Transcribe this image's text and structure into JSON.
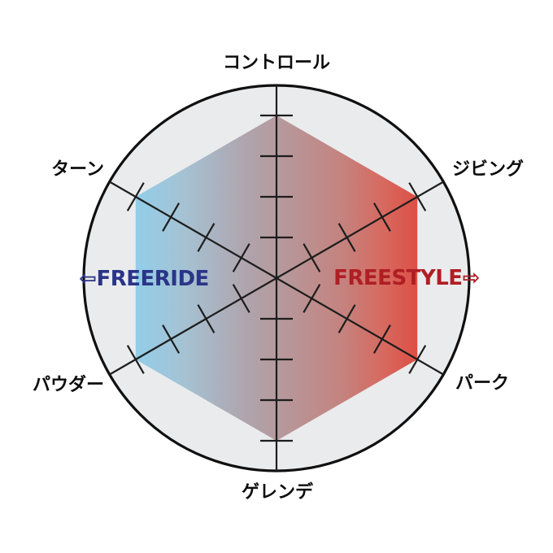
{
  "page": {
    "background_color": "#ffffff"
  },
  "chart_data": {
    "type": "radar",
    "axes_count": 6,
    "categories": [
      "コントロール",
      "ジビング",
      "パーク",
      "ゲレンデ",
      "パウダー",
      "ターン"
    ],
    "values": [
      4,
      4,
      4,
      4,
      4,
      4
    ],
    "max_value": 4,
    "ticks_per_axis": 4,
    "layout_note": "hexagonal radar: all six axes filled to the outermost (4th) tick mark; spokes extend beyond the hexagon to the enclosing circle",
    "legend": {
      "left": {
        "arrow": "⇦",
        "label": "FREERIDE",
        "color": "#2a3588"
      },
      "right": {
        "label": "FREESTYLE",
        "arrow": "⇨",
        "color": "#b01e24"
      }
    },
    "style": {
      "circle_fill": "#eaebec",
      "circle_stroke": "#101010",
      "line_color": "#1d1d1d",
      "label_color": "#0d0d0d",
      "gradient_direction": "left-to-right",
      "gradient": [
        {
          "offset": 0.0,
          "color": "#8ed0ee"
        },
        {
          "offset": 0.2,
          "color": "#a5c2d3"
        },
        {
          "offset": 0.42,
          "color": "#b0a3ac"
        },
        {
          "offset": 0.52,
          "color": "#b59a9e"
        },
        {
          "offset": 0.74,
          "color": "#c4837f"
        },
        {
          "offset": 0.88,
          "color": "#d66a60"
        },
        {
          "offset": 1.0,
          "color": "#dd4f45"
        }
      ]
    }
  }
}
